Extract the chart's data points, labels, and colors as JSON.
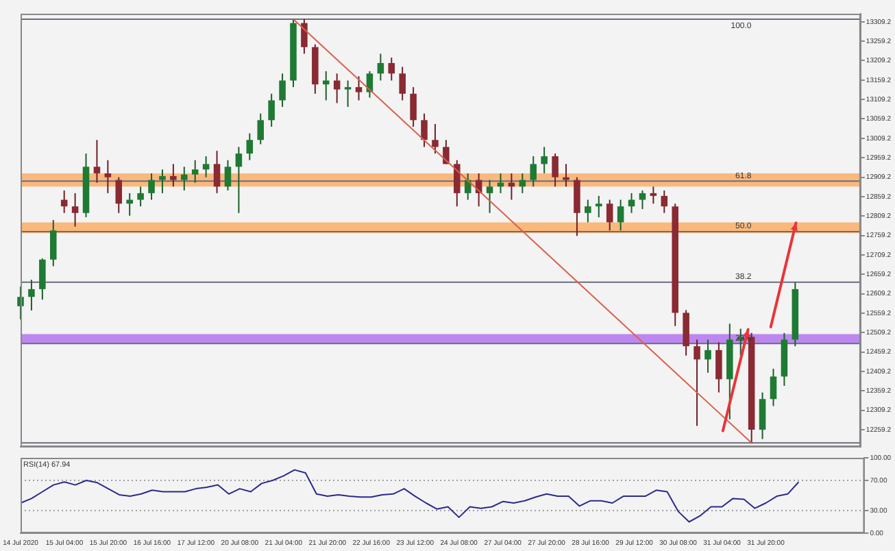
{
  "chart_data": [
    {
      "type": "candlestick",
      "categories": [
        null,
        null,
        null,
        null,
        null,
        null,
        null,
        null,
        null,
        null,
        null,
        null,
        null,
        null,
        null,
        null,
        null,
        null,
        null,
        null,
        null,
        null,
        null,
        null,
        null,
        null,
        null,
        null,
        null,
        null,
        null,
        null,
        null,
        null,
        null,
        null,
        null,
        null,
        null,
        null,
        null,
        null,
        null,
        null,
        null,
        null,
        null,
        null,
        null,
        null,
        null,
        null,
        null,
        null,
        null,
        null,
        null,
        null,
        null,
        null,
        null,
        null,
        null,
        null,
        null,
        null,
        null,
        null,
        null,
        null,
        null,
        null,
        null,
        null,
        null,
        null,
        null,
        null
      ],
      "ohlc": [
        [
          12577,
          12628,
          12543,
          12601
        ],
        [
          12601,
          12645,
          12566,
          12621
        ],
        [
          12621,
          12700,
          12594,
          12697
        ],
        [
          12697,
          12799,
          12680,
          12772
        ],
        [
          12851,
          12875,
          12817,
          12834
        ],
        [
          12834,
          12868,
          12782,
          12817
        ],
        [
          12817,
          12970,
          12806,
          12936
        ],
        [
          12936,
          13005,
          12895,
          12919
        ],
        [
          12919,
          12953,
          12868,
          12909
        ],
        [
          12902,
          12909,
          12817,
          12841
        ],
        [
          12841,
          12868,
          12810,
          12851
        ],
        [
          12851,
          12885,
          12834,
          12868
        ],
        [
          12868,
          12919,
          12851,
          12902
        ],
        [
          12902,
          12929,
          12868,
          12912
        ],
        [
          12912,
          12943,
          12885,
          12902
        ],
        [
          12902,
          12936,
          12875,
          12916
        ],
        [
          12916,
          12953,
          12895,
          12929
        ],
        [
          12929,
          12963,
          12909,
          12943
        ],
        [
          12943,
          12977,
          12868,
          12885
        ],
        [
          12885,
          12953,
          12875,
          12936
        ],
        [
          12936,
          12987,
          12817,
          12970
        ],
        [
          12970,
          13022,
          12953,
          13005
        ],
        [
          13005,
          13073,
          12994,
          13056
        ],
        [
          13056,
          13124,
          13039,
          13107
        ],
        [
          13107,
          13176,
          13090,
          13158
        ],
        [
          13158,
          13316,
          13141,
          13306
        ],
        [
          13306,
          13316,
          13227,
          13244
        ],
        [
          13244,
          13251,
          13124,
          13148
        ],
        [
          13148,
          13182,
          13107,
          13158
        ],
        [
          13158,
          13176,
          13100,
          13135
        ],
        [
          13135,
          13158,
          13090,
          13141
        ],
        [
          13141,
          13169,
          13107,
          13128
        ],
        [
          13128,
          13182,
          13114,
          13176
        ],
        [
          13176,
          13227,
          13158,
          13203
        ],
        [
          13203,
          13217,
          13158,
          13176
        ],
        [
          13176,
          13193,
          13107,
          13124
        ],
        [
          13124,
          13141,
          13039,
          13056
        ],
        [
          13056,
          13073,
          12987,
          13005
        ],
        [
          13005,
          13046,
          12970,
          12987
        ],
        [
          12987,
          13005,
          12943,
          12943
        ],
        [
          12943,
          12953,
          12834,
          12868
        ],
        [
          12868,
          12919,
          12851,
          12902
        ],
        [
          12902,
          12919,
          12834,
          12868
        ],
        [
          12868,
          12902,
          12817,
          12885
        ],
        [
          12885,
          12919,
          12868,
          12895
        ],
        [
          12895,
          12919,
          12851,
          12885
        ],
        [
          12885,
          12919,
          12868,
          12902
        ],
        [
          12902,
          12963,
          12885,
          12943
        ],
        [
          12943,
          12987,
          12919,
          12963
        ],
        [
          12963,
          12970,
          12885,
          12909
        ],
        [
          12909,
          12943,
          12885,
          12902
        ],
        [
          12902,
          12909,
          12758,
          12817
        ],
        [
          12817,
          12851,
          12793,
          12834
        ],
        [
          12834,
          12861,
          12806,
          12841
        ],
        [
          12841,
          12851,
          12772,
          12793
        ],
        [
          12793,
          12851,
          12772,
          12834
        ],
        [
          12834,
          12868,
          12817,
          12851
        ],
        [
          12851,
          12875,
          12827,
          12868
        ],
        [
          12868,
          12885,
          12841,
          12861
        ],
        [
          12861,
          12875,
          12817,
          12834
        ],
        [
          12834,
          12841,
          12526,
          12560
        ],
        [
          12560,
          12567,
          12450,
          12474
        ],
        [
          12474,
          12491,
          12269,
          12440
        ],
        [
          12440,
          12491,
          12406,
          12464
        ],
        [
          12464,
          12484,
          12355,
          12389
        ],
        [
          12389,
          12532,
          12286,
          12491
        ],
        [
          12491,
          12519,
          12450,
          12498
        ],
        [
          12498,
          12508,
          12225,
          12259
        ],
        [
          12259,
          12355,
          12235,
          12338
        ],
        [
          12338,
          12416,
          12320,
          12396
        ],
        [
          12396,
          12508,
          12372,
          12491
        ],
        [
          12491,
          12638,
          12474,
          12621
        ],
        null,
        null,
        null,
        null,
        null,
        null
      ],
      "series": [
        {
          "type": "line",
          "color": "#d9604c",
          "values": [
            null,
            null,
            null,
            null,
            null,
            null,
            null,
            null,
            null,
            null,
            null,
            null,
            null,
            null,
            null,
            null,
            null,
            null,
            null,
            null,
            null,
            null,
            null,
            null,
            null,
            13316,
            null,
            null,
            null,
            null,
            null,
            null,
            null,
            null,
            null,
            null,
            null,
            null,
            null,
            null,
            null,
            null,
            null,
            null,
            null,
            null,
            null,
            null,
            null,
            null,
            null,
            null,
            null,
            null,
            null,
            null,
            null,
            null,
            null,
            null,
            null,
            null,
            null,
            null,
            null,
            null,
            null,
            12225,
            null,
            null,
            null,
            null,
            null,
            null,
            null,
            null,
            null,
            null
          ]
        }
      ],
      "ylim": [
        12215,
        13330
      ],
      "yticks": [
        13309.2,
        13259.2,
        13209.2,
        13159.2,
        13109.2,
        13059.2,
        13009.2,
        12959.2,
        12909.2,
        12859.2,
        12809.2,
        12759.2,
        12709.2,
        12659.2,
        12609.2,
        12559.2,
        12509.2,
        12459.2,
        12409.2,
        12359.2,
        12309.2,
        12259.2
      ],
      "ref_lines": [
        {
          "axis": "y",
          "value": 13316,
          "color": "#6b6b80"
        },
        {
          "axis": "y",
          "value": 12899,
          "color": "#6b6b80"
        },
        {
          "axis": "y",
          "value": 12769,
          "color": "#6b6b80"
        },
        {
          "axis": "y",
          "value": 12639,
          "color": "#6b6b80"
        },
        {
          "axis": "y",
          "value": 12481,
          "color": "#6b6b80"
        },
        {
          "axis": "y",
          "value": 12225,
          "color": "#6b6b80"
        }
      ],
      "annotations": [
        {
          "text": "100.0",
          "y": 13316
        },
        {
          "text": "61.8",
          "y": 12899
        },
        {
          "text": "50.0",
          "y": 12769
        },
        {
          "text": "38.2",
          "y": 12639
        },
        {
          "text": "23.6",
          "y": 12481
        }
      ],
      "bands": [
        {
          "axis": "y",
          "from": 12885,
          "to": 12919,
          "color": "#f9b26f"
        },
        {
          "axis": "y",
          "from": 12765,
          "to": 12793,
          "color": "#f9b26f"
        },
        {
          "axis": "y",
          "from": 12480,
          "to": 12505,
          "color": "#b67cf0"
        }
      ],
      "tick_labels": "y",
      "grid": false,
      "legend": false
    },
    {
      "type": "line",
      "title": "RSI(14) 67.94",
      "categories": [
        "14 Jul 2020",
        null,
        null,
        null,
        "15 Jul 04:00",
        null,
        null,
        null,
        "15 Jul 20:00",
        null,
        null,
        null,
        "16 Jul 16:00",
        null,
        null,
        null,
        "17 Jul 12:00",
        null,
        null,
        null,
        "20 Jul 08:00",
        null,
        null,
        null,
        "21 Jul 04:00",
        null,
        null,
        null,
        "21 Jul 20:00",
        null,
        null,
        null,
        "22 Jul 16:00",
        null,
        null,
        null,
        "23 Jul 12:00",
        null,
        null,
        null,
        "24 Jul 08:00",
        null,
        null,
        null,
        "27 Jul 04:00",
        null,
        null,
        null,
        "27 Jul 20:00",
        null,
        null,
        null,
        "28 Jul 16:00",
        null,
        null,
        null,
        "29 Jul 12:00",
        null,
        null,
        null,
        "30 Jul 08:00",
        null,
        null,
        null,
        "31 Jul 04:00",
        null,
        null,
        null,
        "31 Jul 20:00",
        null,
        null,
        null,
        null,
        null,
        null,
        null,
        null,
        null
      ],
      "series": [
        {
          "color": "#2a2a8c",
          "values": [
            40,
            46,
            55,
            64,
            68,
            64,
            70,
            67,
            59,
            51,
            49,
            52,
            57,
            55,
            55,
            55,
            59,
            61,
            64,
            52,
            59,
            55,
            66,
            70,
            76,
            84,
            80,
            52,
            49,
            51,
            49,
            48,
            48,
            51,
            52,
            59,
            49,
            40,
            32,
            35,
            21,
            35,
            33,
            35,
            42,
            40,
            43,
            48,
            52,
            49,
            49,
            36,
            43,
            43,
            40,
            49,
            49,
            49,
            57,
            55,
            29,
            15,
            23,
            35,
            35,
            46,
            45,
            33,
            40,
            49,
            52,
            67.94,
            null,
            null,
            null,
            null,
            null,
            null
          ]
        }
      ],
      "ylim": [
        0,
        100
      ],
      "yticks": [
        {
          "value": 0,
          "label": "0.00"
        },
        {
          "value": 30,
          "label": "30.00"
        },
        {
          "value": 70,
          "label": "70.00"
        },
        {
          "value": 100,
          "label": "100.00"
        }
      ],
      "ref_lines": [
        {
          "axis": "y",
          "value": 70,
          "color": "#a0a0a0",
          "line_style": "dotted"
        },
        {
          "axis": "y",
          "value": 30,
          "color": "#a0a0a0",
          "line_style": "dotted"
        }
      ],
      "grid": false,
      "legend": false,
      "marker": "none"
    }
  ]
}
